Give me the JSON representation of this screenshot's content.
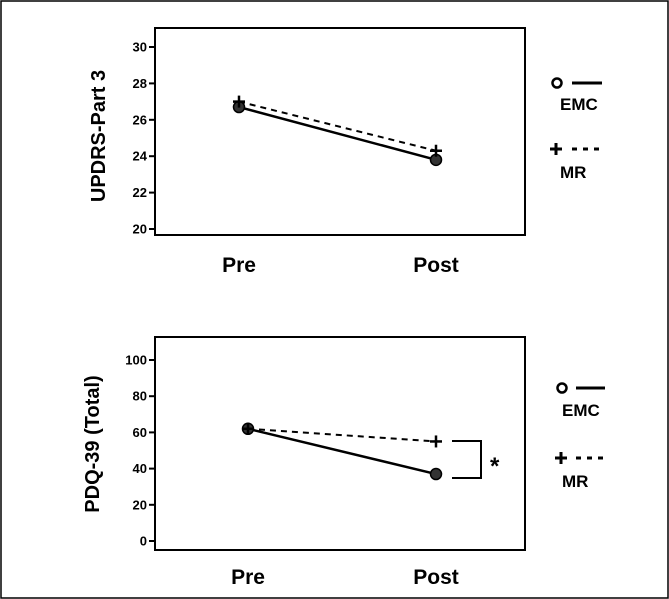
{
  "chart_data": [
    {
      "type": "line",
      "ylabel": "UPDRS-Part 3",
      "categories": [
        "Pre",
        "Post"
      ],
      "ylim": [
        20,
        30
      ],
      "yticks": [
        20,
        22,
        24,
        26,
        28,
        30
      ],
      "series": [
        {
          "name": "EMC",
          "values": [
            26.7,
            23.8
          ],
          "marker": "circle",
          "line": "solid"
        },
        {
          "name": "MR",
          "values": [
            27.0,
            24.3
          ],
          "marker": "plus",
          "line": "dashed"
        }
      ],
      "legend": "right"
    },
    {
      "type": "line",
      "ylabel": "PDQ-39 (Total)",
      "categories": [
        "Pre",
        "Post"
      ],
      "ylim": [
        0,
        100
      ],
      "yticks": [
        0,
        20,
        40,
        60,
        80,
        100
      ],
      "series": [
        {
          "name": "EMC",
          "values": [
            62,
            37
          ],
          "marker": "circle",
          "line": "solid"
        },
        {
          "name": "MR",
          "values": [
            62,
            55
          ],
          "marker": "plus",
          "line": "dashed"
        }
      ],
      "legend": "right",
      "annotation": "*"
    }
  ]
}
